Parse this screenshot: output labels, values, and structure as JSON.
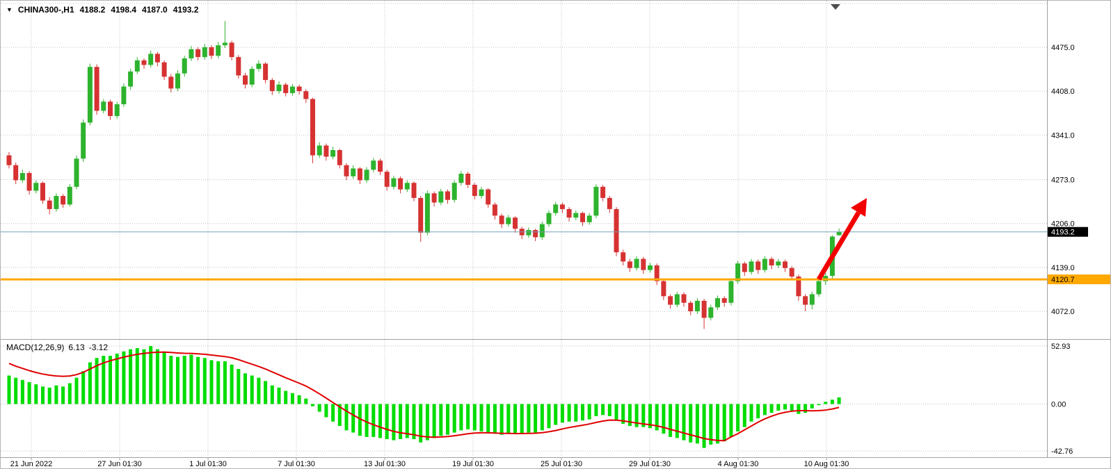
{
  "header": {
    "symbol": "CHINA300-,H1",
    "open": "4188.2",
    "high": "4198.4",
    "low": "4187.0",
    "close": "4193.2"
  },
  "macd_label": {
    "name": "MACD(12,26,9)",
    "main": "6.13",
    "signal": "-3.12"
  },
  "bid_tag": "4193.2",
  "orange_tag": "4120.7",
  "colors": {
    "background": "#ffffff",
    "up_candle": "#2db32d",
    "down_candle": "#d63232",
    "macd_histogram": "#00dc00",
    "macd_signal": "#e00000",
    "grid": "#c2c2c2",
    "axis_line": "#a0a0a0",
    "axis_text": "#000000",
    "bid_line": "#76a0b8",
    "bid_tag_bg": "#000000",
    "bid_tag_fg": "#ffffff",
    "hline": "#ffa800",
    "hline_tag_fg": "#000000",
    "arrow": "#f20000",
    "shift_marker": "#4d4d4d"
  },
  "annotations": {
    "trend_arrow": {
      "color": "#f20000",
      "direction": "up-right"
    },
    "horizontal_level": 4120.7
  },
  "chart_data": [
    {
      "type": "candlestick",
      "symbol": "CHINA300-",
      "timeframe": "H1",
      "ohlc_current": [
        4188.2,
        4198.4,
        4187.0,
        4193.2
      ],
      "bid_price": 4193.2,
      "hline_level": 4120.7,
      "y_tick_labels": [
        "4475.0",
        "4408.0",
        "4341.0",
        "4273.0",
        "4206.0",
        "4139.0",
        "4072.0"
      ],
      "y_tick_values": [
        4475,
        4408,
        4341,
        4273,
        4206,
        4139,
        4072
      ],
      "x_tick_labels": [
        "21 Jun 2022",
        "27 Jun 01:30",
        "1 Jul 01:30",
        "7 Jul 01:30",
        "13 Jul 01:30",
        "19 Jul 01:30",
        "25 Jul 01:30",
        "29 Jul 01:30",
        "4 Aug 01:30",
        "10 Aug 01:30"
      ],
      "ylim": [
        4035,
        4530
      ],
      "grid": true,
      "candles": [
        [
          4310,
          4315,
          4290,
          4295
        ],
        [
          4295,
          4299,
          4266,
          4272
        ],
        [
          4272,
          4288,
          4268,
          4283
        ],
        [
          4283,
          4286,
          4250,
          4256
        ],
        [
          4256,
          4272,
          4252,
          4268
        ],
        [
          4268,
          4270,
          4236,
          4241
        ],
        [
          4241,
          4246,
          4220,
          4228
        ],
        [
          4228,
          4252,
          4224,
          4248
        ],
        [
          4248,
          4251,
          4230,
          4235
        ],
        [
          4235,
          4266,
          4232,
          4262
        ],
        [
          4262,
          4310,
          4258,
          4305
        ],
        [
          4305,
          4365,
          4300,
          4360
        ],
        [
          4360,
          4450,
          4356,
          4445
        ],
        [
          4445,
          4449,
          4372,
          4378
        ],
        [
          4378,
          4396,
          4374,
          4392
        ],
        [
          4392,
          4395,
          4364,
          4370
        ],
        [
          4370,
          4392,
          4366,
          4388
        ],
        [
          4388,
          4420,
          4384,
          4415
        ],
        [
          4415,
          4442,
          4410,
          4438
        ],
        [
          4438,
          4460,
          4434,
          4455
        ],
        [
          4455,
          4458,
          4442,
          4448
        ],
        [
          4448,
          4470,
          4444,
          4465
        ],
        [
          4465,
          4468,
          4446,
          4452
        ],
        [
          4452,
          4455,
          4425,
          4430
        ],
        [
          4430,
          4434,
          4406,
          4412
        ],
        [
          4412,
          4440,
          4408,
          4435
        ],
        [
          4435,
          4462,
          4430,
          4458
        ],
        [
          4458,
          4477,
          4454,
          4472
        ],
        [
          4472,
          4475,
          4455,
          4460
        ],
        [
          4460,
          4480,
          4456,
          4475
        ],
        [
          4475,
          4478,
          4457,
          4462
        ],
        [
          4462,
          4483,
          4458,
          4478
        ],
        [
          4478,
          4515,
          4474,
          4482
        ],
        [
          4482,
          4485,
          4455,
          4460
        ],
        [
          4460,
          4463,
          4427,
          4432
        ],
        [
          4432,
          4436,
          4412,
          4418
        ],
        [
          4418,
          4446,
          4414,
          4442
        ],
        [
          4442,
          4455,
          4438,
          4450
        ],
        [
          4450,
          4452,
          4420,
          4425
        ],
        [
          4425,
          4428,
          4402,
          4408
        ],
        [
          4408,
          4423,
          4404,
          4418
        ],
        [
          4418,
          4421,
          4400,
          4405
        ],
        [
          4405,
          4419,
          4401,
          4415
        ],
        [
          4415,
          4418,
          4403,
          4408
        ],
        [
          4408,
          4411,
          4390,
          4396
        ],
        [
          4396,
          4398,
          4298,
          4310
        ],
        [
          4310,
          4330,
          4306,
          4325
        ],
        [
          4325,
          4328,
          4302,
          4308
        ],
        [
          4308,
          4323,
          4304,
          4318
        ],
        [
          4318,
          4320,
          4290,
          4295
        ],
        [
          4295,
          4298,
          4272,
          4278
        ],
        [
          4278,
          4295,
          4274,
          4290
        ],
        [
          4290,
          4292,
          4266,
          4272
        ],
        [
          4272,
          4292,
          4268,
          4288
        ],
        [
          4288,
          4306,
          4284,
          4302
        ],
        [
          4302,
          4305,
          4280,
          4285
        ],
        [
          4285,
          4288,
          4256,
          4262
        ],
        [
          4262,
          4279,
          4258,
          4275
        ],
        [
          4275,
          4278,
          4252,
          4258
        ],
        [
          4258,
          4272,
          4254,
          4268
        ],
        [
          4268,
          4270,
          4240,
          4245
        ],
        [
          4245,
          4248,
          4178,
          4192
        ],
        [
          4192,
          4256,
          4188,
          4252
        ],
        [
          4252,
          4255,
          4232,
          4238
        ],
        [
          4238,
          4259,
          4234,
          4255
        ],
        [
          4255,
          4258,
          4236,
          4242
        ],
        [
          4242,
          4272,
          4238,
          4268
        ],
        [
          4268,
          4286,
          4264,
          4282
        ],
        [
          4282,
          4285,
          4260,
          4265
        ],
        [
          4265,
          4268,
          4243,
          4248
        ],
        [
          4248,
          4262,
          4244,
          4258
        ],
        [
          4258,
          4260,
          4230,
          4235
        ],
        [
          4235,
          4238,
          4212,
          4218
        ],
        [
          4218,
          4221,
          4199,
          4205
        ],
        [
          4205,
          4219,
          4201,
          4215
        ],
        [
          4215,
          4217,
          4192,
          4198
        ],
        [
          4198,
          4201,
          4182,
          4188
        ],
        [
          4188,
          4200,
          4184,
          4196
        ],
        [
          4196,
          4198,
          4179,
          4185
        ],
        [
          4185,
          4209,
          4181,
          4205
        ],
        [
          4205,
          4226,
          4201,
          4222
        ],
        [
          4222,
          4239,
          4218,
          4235
        ],
        [
          4235,
          4238,
          4222,
          4228
        ],
        [
          4228,
          4231,
          4209,
          4215
        ],
        [
          4215,
          4226,
          4211,
          4222
        ],
        [
          4222,
          4224,
          4202,
          4208
        ],
        [
          4208,
          4222,
          4204,
          4218
        ],
        [
          4218,
          4266,
          4214,
          4262
        ],
        [
          4262,
          4265,
          4240,
          4245
        ],
        [
          4245,
          4248,
          4222,
          4228
        ],
        [
          4228,
          4231,
          4156,
          4162
        ],
        [
          4162,
          4166,
          4142,
          4148
        ],
        [
          4148,
          4152,
          4132,
          4138
        ],
        [
          4138,
          4156,
          4134,
          4152
        ],
        [
          4152,
          4155,
          4129,
          4135
        ],
        [
          4135,
          4146,
          4131,
          4142
        ],
        [
          4142,
          4145,
          4112,
          4118
        ],
        [
          4118,
          4121,
          4089,
          4095
        ],
        [
          4095,
          4098,
          4076,
          4082
        ],
        [
          4082,
          4102,
          4078,
          4098
        ],
        [
          4098,
          4101,
          4079,
          4085
        ],
        [
          4085,
          4088,
          4066,
          4072
        ],
        [
          4072,
          4092,
          4068,
          4088
        ],
        [
          4088,
          4091,
          4045,
          4062
        ],
        [
          4062,
          4082,
          4058,
          4078
        ],
        [
          4078,
          4096,
          4074,
          4092
        ],
        [
          4092,
          4095,
          4079,
          4085
        ],
        [
          4085,
          4122,
          4081,
          4118
        ],
        [
          4118,
          4149,
          4114,
          4145
        ],
        [
          4145,
          4148,
          4126,
          4132
        ],
        [
          4132,
          4152,
          4128,
          4148
        ],
        [
          4148,
          4151,
          4129,
          4135
        ],
        [
          4135,
          4156,
          4131,
          4152
        ],
        [
          4152,
          4155,
          4136,
          4142
        ],
        [
          4142,
          4152,
          4138,
          4148
        ],
        [
          4148,
          4151,
          4132,
          4138
        ],
        [
          4138,
          4141,
          4119,
          4125
        ],
        [
          4125,
          4128,
          4088,
          4095
        ],
        [
          4095,
          4098,
          4072,
          4082
        ],
        [
          4082,
          4102,
          4075,
          4098
        ],
        [
          4098,
          4122,
          4094,
          4118
        ],
        [
          4118,
          4130,
          4112,
          4126
        ],
        [
          4126,
          4188,
          4122,
          4186
        ],
        [
          4188.2,
          4198.4,
          4187.0,
          4193.2
        ]
      ]
    },
    {
      "type": "bar+line",
      "title": "MACD(12,26,9)",
      "main_value": 6.13,
      "signal_value": -3.12,
      "y_tick_labels": [
        "52.93",
        "0.00",
        "-42.76"
      ],
      "y_tick_values": [
        52.93,
        0,
        -42.76
      ],
      "histogram": [
        26,
        24,
        22,
        20,
        18,
        16,
        15,
        17,
        16,
        19,
        24,
        30,
        38,
        42,
        44,
        44,
        46,
        48,
        50,
        51,
        50,
        52.9,
        50,
        48,
        44,
        43,
        44,
        45,
        43,
        42,
        40,
        39,
        39,
        36,
        32,
        28,
        26,
        24,
        21,
        17,
        15,
        12,
        10,
        8,
        5,
        -2,
        -7,
        -12,
        -16,
        -20,
        -24,
        -26,
        -29,
        -30,
        -30,
        -31,
        -32,
        -33,
        -32,
        -31,
        -32,
        -35,
        -33,
        -31,
        -29,
        -28,
        -26,
        -24,
        -23,
        -24,
        -25,
        -26,
        -27,
        -28,
        -27,
        -27,
        -27,
        -26,
        -26,
        -24,
        -22,
        -19,
        -17,
        -16,
        -16,
        -15,
        -14,
        -11,
        -10,
        -11,
        -15,
        -18,
        -20,
        -21,
        -21,
        -22,
        -24,
        -27,
        -30,
        -31,
        -33,
        -35,
        -36,
        -40,
        -37,
        -36,
        -34,
        -30,
        -25,
        -21,
        -16,
        -13,
        -10,
        -8,
        -6,
        -5,
        -6,
        -9,
        -8,
        -4,
        -1,
        2,
        4,
        6.13
      ],
      "signal": [
        37,
        34.5,
        32.5,
        30.5,
        28.8,
        27.4,
        26.3,
        25.6,
        25.3,
        25.6,
        26.8,
        29,
        32,
        35,
        37.5,
        39.5,
        41.2,
        42.8,
        44.2,
        45.4,
        46.2,
        46.9,
        47.3,
        47.4,
        47.1,
        46.6,
        46.3,
        46.2,
        45.8,
        45.4,
        44.7,
        44,
        43.3,
        42.2,
        40.5,
        38.4,
        36.3,
        34.3,
        32,
        29.3,
        26.7,
        24,
        21.5,
        19,
        16.4,
        13,
        9.3,
        5.4,
        1.4,
        -2.5,
        -6.4,
        -10,
        -13.4,
        -16.4,
        -18.9,
        -21.1,
        -23.1,
        -24.9,
        -26.2,
        -27.1,
        -28,
        -29.3,
        -30,
        -30.2,
        -30,
        -29.6,
        -28.9,
        -28,
        -27.1,
        -26.5,
        -26.2,
        -26.2,
        -26.4,
        -26.7,
        -26.8,
        -26.9,
        -26.9,
        -26.8,
        -26.6,
        -26.1,
        -25.3,
        -24.1,
        -22.7,
        -21.4,
        -20.3,
        -19.3,
        -18.2,
        -16.8,
        -15.5,
        -14.6,
        -14.7,
        -15.4,
        -16.3,
        -17.3,
        -18.1,
        -18.9,
        -19.9,
        -21.3,
        -23.1,
        -24.7,
        -26.4,
        -28.1,
        -29.7,
        -31.4,
        -32.5,
        -33.2,
        -33.4,
        -30,
        -27,
        -23.5,
        -20,
        -16.5,
        -13.5,
        -11,
        -9,
        -7.5,
        -6.5,
        -6,
        -6,
        -6.2,
        -6,
        -5.5,
        -4.5,
        -3.12
      ]
    }
  ]
}
